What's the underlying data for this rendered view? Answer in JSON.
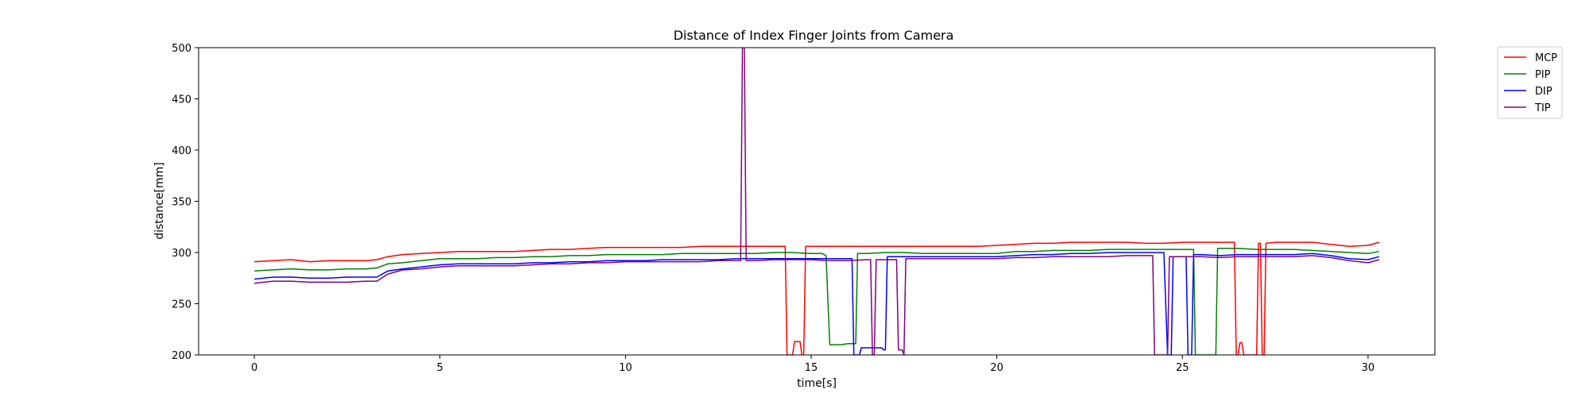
{
  "chart_data": {
    "type": "line",
    "title": "Distance of Index Finger Joints from Camera",
    "xlabel": "time[s]",
    "ylabel": "distance[mm]",
    "xlim": [
      -1.5,
      31.8
    ],
    "ylim": [
      200,
      500
    ],
    "xticks": [
      0,
      5,
      10,
      15,
      20,
      25,
      30
    ],
    "yticks": [
      200,
      250,
      300,
      350,
      400,
      450,
      500
    ],
    "xtick_labels": [
      "0",
      "5",
      "10",
      "15",
      "20",
      "25",
      "30"
    ],
    "ytick_labels": [
      "200",
      "250",
      "300",
      "350",
      "400",
      "450",
      "500"
    ],
    "grid": false,
    "legend_position": "outside-top-right",
    "series": [
      {
        "name": "MCP",
        "color": "#ff0000",
        "points": [
          [
            0.0,
            291
          ],
          [
            0.5,
            292
          ],
          [
            1.0,
            293
          ],
          [
            1.5,
            291
          ],
          [
            2.0,
            292
          ],
          [
            2.5,
            292
          ],
          [
            3.0,
            292
          ],
          [
            3.3,
            293
          ],
          [
            3.6,
            296
          ],
          [
            4.0,
            298
          ],
          [
            4.5,
            299
          ],
          [
            5.0,
            300
          ],
          [
            5.5,
            301
          ],
          [
            6.0,
            301
          ],
          [
            6.5,
            301
          ],
          [
            7.0,
            301
          ],
          [
            7.5,
            302
          ],
          [
            8.0,
            303
          ],
          [
            8.5,
            303
          ],
          [
            9.0,
            304
          ],
          [
            9.5,
            305
          ],
          [
            10.0,
            305
          ],
          [
            10.5,
            305
          ],
          [
            11.0,
            305
          ],
          [
            11.5,
            305
          ],
          [
            12.0,
            306
          ],
          [
            12.5,
            306
          ],
          [
            13.0,
            306
          ],
          [
            13.5,
            306
          ],
          [
            14.0,
            306
          ],
          [
            14.3,
            306
          ],
          [
            14.35,
            200
          ],
          [
            14.5,
            200
          ],
          [
            14.55,
            213
          ],
          [
            14.7,
            213
          ],
          [
            14.75,
            200
          ],
          [
            14.8,
            200
          ],
          [
            14.85,
            306
          ],
          [
            15.0,
            306
          ],
          [
            15.5,
            306
          ],
          [
            16.0,
            306
          ],
          [
            16.5,
            306
          ],
          [
            17.0,
            306
          ],
          [
            17.5,
            306
          ],
          [
            18.0,
            306
          ],
          [
            18.5,
            306
          ],
          [
            19.0,
            306
          ],
          [
            19.5,
            306
          ],
          [
            20.0,
            307
          ],
          [
            20.5,
            308
          ],
          [
            21.0,
            309
          ],
          [
            21.5,
            309
          ],
          [
            22.0,
            310
          ],
          [
            22.5,
            310
          ],
          [
            23.0,
            310
          ],
          [
            23.5,
            310
          ],
          [
            24.0,
            309
          ],
          [
            24.5,
            309
          ],
          [
            25.0,
            310
          ],
          [
            25.5,
            310
          ],
          [
            26.0,
            310
          ],
          [
            26.4,
            310
          ],
          [
            26.45,
            200
          ],
          [
            26.5,
            200
          ],
          [
            26.55,
            212
          ],
          [
            26.6,
            212
          ],
          [
            26.65,
            200
          ],
          [
            27.0,
            200
          ],
          [
            27.05,
            309
          ],
          [
            27.1,
            309
          ],
          [
            27.15,
            200
          ],
          [
            27.2,
            200
          ],
          [
            27.25,
            309
          ],
          [
            27.5,
            310
          ],
          [
            28.0,
            310
          ],
          [
            28.5,
            310
          ],
          [
            29.0,
            308
          ],
          [
            29.5,
            306
          ],
          [
            30.0,
            307
          ],
          [
            30.3,
            310
          ]
        ]
      },
      {
        "name": "PIP",
        "color": "#008000",
        "points": [
          [
            0.0,
            282
          ],
          [
            0.5,
            283
          ],
          [
            1.0,
            284
          ],
          [
            1.5,
            283
          ],
          [
            2.0,
            283
          ],
          [
            2.5,
            284
          ],
          [
            3.0,
            284
          ],
          [
            3.3,
            285
          ],
          [
            3.6,
            289
          ],
          [
            4.0,
            290
          ],
          [
            4.5,
            292
          ],
          [
            5.0,
            294
          ],
          [
            5.5,
            294
          ],
          [
            6.0,
            294
          ],
          [
            6.5,
            295
          ],
          [
            7.0,
            295
          ],
          [
            7.5,
            296
          ],
          [
            8.0,
            296
          ],
          [
            8.5,
            297
          ],
          [
            9.0,
            297
          ],
          [
            9.5,
            298
          ],
          [
            10.0,
            298
          ],
          [
            10.5,
            298
          ],
          [
            11.0,
            298
          ],
          [
            11.5,
            299
          ],
          [
            12.0,
            299
          ],
          [
            12.5,
            299
          ],
          [
            13.0,
            299
          ],
          [
            13.5,
            299
          ],
          [
            14.0,
            300
          ],
          [
            14.5,
            300
          ],
          [
            15.0,
            299
          ],
          [
            15.3,
            299
          ],
          [
            15.4,
            297
          ],
          [
            15.5,
            210
          ],
          [
            15.8,
            210
          ],
          [
            16.0,
            211
          ],
          [
            16.2,
            211
          ],
          [
            16.25,
            299
          ],
          [
            16.5,
            299
          ],
          [
            17.0,
            300
          ],
          [
            17.5,
            300
          ],
          [
            18.0,
            299
          ],
          [
            18.5,
            299
          ],
          [
            19.0,
            299
          ],
          [
            19.5,
            299
          ],
          [
            20.0,
            299
          ],
          [
            20.5,
            301
          ],
          [
            21.0,
            301
          ],
          [
            21.5,
            302
          ],
          [
            22.0,
            302
          ],
          [
            22.5,
            302
          ],
          [
            23.0,
            303
          ],
          [
            23.5,
            303
          ],
          [
            24.0,
            303
          ],
          [
            24.5,
            303
          ],
          [
            25.0,
            303
          ],
          [
            25.3,
            303
          ],
          [
            25.35,
            200
          ],
          [
            25.9,
            200
          ],
          [
            25.95,
            304
          ],
          [
            26.5,
            304
          ],
          [
            27.0,
            303
          ],
          [
            27.5,
            303
          ],
          [
            28.0,
            303
          ],
          [
            28.5,
            302
          ],
          [
            29.0,
            301
          ],
          [
            29.5,
            300
          ],
          [
            30.0,
            299
          ],
          [
            30.3,
            301
          ]
        ]
      },
      {
        "name": "DIP",
        "color": "#0000ff",
        "points": [
          [
            0.0,
            274
          ],
          [
            0.5,
            276
          ],
          [
            1.0,
            276
          ],
          [
            1.5,
            275
          ],
          [
            2.0,
            275
          ],
          [
            2.5,
            276
          ],
          [
            3.0,
            276
          ],
          [
            3.3,
            276
          ],
          [
            3.6,
            282
          ],
          [
            4.0,
            284
          ],
          [
            4.5,
            286
          ],
          [
            5.0,
            288
          ],
          [
            5.5,
            289
          ],
          [
            6.0,
            289
          ],
          [
            6.5,
            289
          ],
          [
            7.0,
            289
          ],
          [
            7.5,
            290
          ],
          [
            8.0,
            290
          ],
          [
            8.5,
            291
          ],
          [
            9.0,
            291
          ],
          [
            9.5,
            292
          ],
          [
            10.0,
            292
          ],
          [
            10.5,
            292
          ],
          [
            11.0,
            293
          ],
          [
            11.5,
            293
          ],
          [
            12.0,
            293
          ],
          [
            12.5,
            293
          ],
          [
            13.0,
            294
          ],
          [
            13.5,
            294
          ],
          [
            14.0,
            294
          ],
          [
            14.5,
            294
          ],
          [
            15.0,
            294
          ],
          [
            15.5,
            294
          ],
          [
            16.0,
            294
          ],
          [
            16.1,
            294
          ],
          [
            16.15,
            200
          ],
          [
            16.3,
            200
          ],
          [
            16.35,
            207
          ],
          [
            16.9,
            207
          ],
          [
            16.95,
            205
          ],
          [
            17.0,
            205
          ],
          [
            17.05,
            296
          ],
          [
            17.5,
            296
          ],
          [
            18.0,
            296
          ],
          [
            18.5,
            296
          ],
          [
            19.0,
            296
          ],
          [
            19.5,
            296
          ],
          [
            20.0,
            296
          ],
          [
            20.5,
            297
          ],
          [
            21.0,
            298
          ],
          [
            21.5,
            298
          ],
          [
            22.0,
            299
          ],
          [
            22.5,
            299
          ],
          [
            23.0,
            300
          ],
          [
            23.5,
            300
          ],
          [
            24.0,
            300
          ],
          [
            24.5,
            300
          ],
          [
            24.6,
            200
          ],
          [
            24.7,
            200
          ],
          [
            24.75,
            296
          ],
          [
            25.0,
            296
          ],
          [
            25.1,
            296
          ],
          [
            25.15,
            200
          ],
          [
            25.25,
            200
          ],
          [
            25.3,
            298
          ],
          [
            25.5,
            298
          ],
          [
            26.0,
            297
          ],
          [
            26.5,
            298
          ],
          [
            27.0,
            298
          ],
          [
            27.5,
            298
          ],
          [
            28.0,
            298
          ],
          [
            28.5,
            299
          ],
          [
            29.0,
            297
          ],
          [
            29.5,
            294
          ],
          [
            30.0,
            293
          ],
          [
            30.3,
            296
          ]
        ]
      },
      {
        "name": "TIP",
        "color": "#800080",
        "points": [
          [
            0.0,
            270
          ],
          [
            0.5,
            272
          ],
          [
            1.0,
            272
          ],
          [
            1.5,
            271
          ],
          [
            2.0,
            271
          ],
          [
            2.5,
            271
          ],
          [
            3.0,
            272
          ],
          [
            3.3,
            272
          ],
          [
            3.6,
            279
          ],
          [
            4.0,
            283
          ],
          [
            4.5,
            284
          ],
          [
            5.0,
            286
          ],
          [
            5.5,
            287
          ],
          [
            6.0,
            287
          ],
          [
            6.5,
            287
          ],
          [
            7.0,
            287
          ],
          [
            7.5,
            288
          ],
          [
            8.0,
            289
          ],
          [
            8.5,
            289
          ],
          [
            9.0,
            290
          ],
          [
            9.5,
            290
          ],
          [
            10.0,
            291
          ],
          [
            10.5,
            291
          ],
          [
            11.0,
            291
          ],
          [
            11.5,
            291
          ],
          [
            12.0,
            291
          ],
          [
            12.5,
            292
          ],
          [
            13.0,
            292
          ],
          [
            13.1,
            292
          ],
          [
            13.15,
            500
          ],
          [
            13.2,
            500
          ],
          [
            13.25,
            292
          ],
          [
            13.5,
            292
          ],
          [
            14.0,
            293
          ],
          [
            14.5,
            293
          ],
          [
            15.0,
            293
          ],
          [
            15.5,
            292
          ],
          [
            16.0,
            292
          ],
          [
            16.5,
            293
          ],
          [
            16.6,
            293
          ],
          [
            16.65,
            200
          ],
          [
            16.7,
            200
          ],
          [
            16.75,
            293
          ],
          [
            17.0,
            293
          ],
          [
            17.3,
            293
          ],
          [
            17.35,
            205
          ],
          [
            17.45,
            205
          ],
          [
            17.5,
            200
          ],
          [
            17.55,
            294
          ],
          [
            18.0,
            294
          ],
          [
            18.5,
            294
          ],
          [
            19.0,
            294
          ],
          [
            19.5,
            294
          ],
          [
            20.0,
            294
          ],
          [
            20.5,
            295
          ],
          [
            21.0,
            295
          ],
          [
            21.5,
            296
          ],
          [
            22.0,
            296
          ],
          [
            22.5,
            296
          ],
          [
            23.0,
            296
          ],
          [
            23.5,
            297
          ],
          [
            24.0,
            297
          ],
          [
            24.2,
            297
          ],
          [
            24.25,
            200
          ],
          [
            24.6,
            200
          ],
          [
            24.65,
            296
          ],
          [
            25.0,
            296
          ],
          [
            25.5,
            296
          ],
          [
            26.0,
            295
          ],
          [
            26.5,
            296
          ],
          [
            27.0,
            296
          ],
          [
            27.5,
            296
          ],
          [
            28.0,
            296
          ],
          [
            28.5,
            297
          ],
          [
            29.0,
            295
          ],
          [
            29.5,
            292
          ],
          [
            30.0,
            290
          ],
          [
            30.3,
            293
          ]
        ]
      }
    ]
  }
}
